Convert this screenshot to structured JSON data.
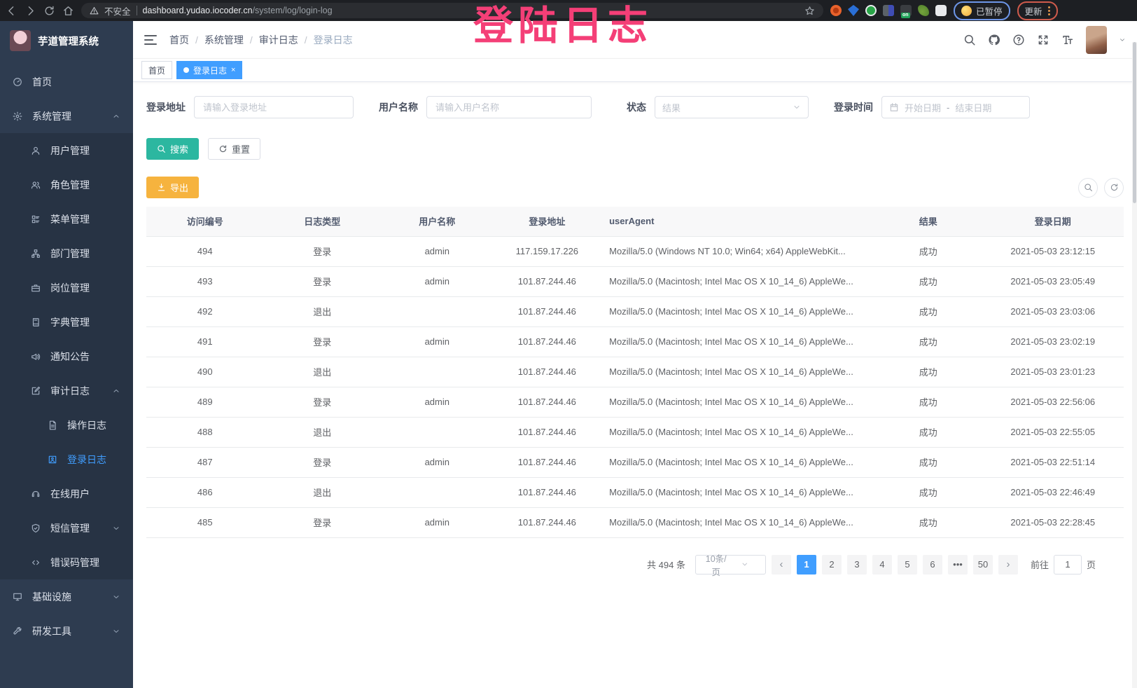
{
  "browser": {
    "security_warning": "不安全",
    "url_host": "dashboard.yudao.iocoder.cn",
    "url_path": "/system/log/login-log",
    "paused_badge": "已暂停",
    "update_button": "更新"
  },
  "annotation": {
    "text": "登陆日志",
    "color": "#f43f77"
  },
  "sidebar": {
    "title": "芋道管理系统",
    "items": [
      {
        "id": "home",
        "label": "首页",
        "icon": "dashboard-icon",
        "level": 1
      },
      {
        "id": "system-management",
        "label": "系统管理",
        "icon": "gear-icon",
        "level": 1,
        "arrow": "up"
      },
      {
        "id": "user-management",
        "label": "用户管理",
        "icon": "user-icon",
        "level": 2
      },
      {
        "id": "role-management",
        "label": "角色管理",
        "icon": "users-icon",
        "level": 2
      },
      {
        "id": "menu-management",
        "label": "菜单管理",
        "icon": "menu-list-icon",
        "level": 2
      },
      {
        "id": "dept-management",
        "label": "部门管理",
        "icon": "org-tree-icon",
        "level": 2
      },
      {
        "id": "post-management",
        "label": "岗位管理",
        "icon": "briefcase-icon",
        "level": 2
      },
      {
        "id": "dict-management",
        "label": "字典管理",
        "icon": "book-icon",
        "level": 2
      },
      {
        "id": "notice",
        "label": "通知公告",
        "icon": "megaphone-icon",
        "level": 2,
        "arrow": ""
      },
      {
        "id": "audit-log",
        "label": "审计日志",
        "icon": "edit-icon",
        "level": 2,
        "arrow": "up"
      },
      {
        "id": "operation-log",
        "label": "操作日志",
        "icon": "doc-icon",
        "level": 3
      },
      {
        "id": "login-log",
        "label": "登录日志",
        "icon": "login-log-icon",
        "level": 3,
        "active": true
      },
      {
        "id": "online-users",
        "label": "在线用户",
        "icon": "headset-icon",
        "level": 2
      },
      {
        "id": "sms-management",
        "label": "短信管理",
        "icon": "shield-check-icon",
        "level": 2,
        "arrow": "down"
      },
      {
        "id": "errcode-management",
        "label": "错误码管理",
        "icon": "code-icon",
        "level": 2
      },
      {
        "id": "infrastructure",
        "label": "基础设施",
        "icon": "monitor-icon",
        "level": 1,
        "arrow": "down"
      },
      {
        "id": "dev-tools",
        "label": "研发工具",
        "icon": "wrench-icon",
        "level": 1,
        "arrow": "down"
      }
    ]
  },
  "breadcrumb": [
    "首页",
    "系统管理",
    "审计日志",
    "登录日志"
  ],
  "tags": [
    {
      "label": "首页",
      "active": false,
      "closable": false
    },
    {
      "label": "登录日志",
      "active": true,
      "closable": true
    }
  ],
  "filters": {
    "ip_label": "登录地址",
    "ip_placeholder": "请输入登录地址",
    "user_label": "用户名称",
    "user_placeholder": "请输入用户名称",
    "status_label": "状态",
    "status_placeholder": "结果",
    "time_label": "登录时间",
    "date_start": "开始日期",
    "date_separator": "-",
    "date_end": "结束日期",
    "search_label": "搜索",
    "reset_label": "重置",
    "export_label": "导出"
  },
  "table": {
    "headers": [
      "访问编号",
      "日志类型",
      "用户名称",
      "登录地址",
      "userAgent",
      "结果",
      "登录日期"
    ],
    "rows": [
      [
        "494",
        "登录",
        "admin",
        "117.159.17.226",
        "Mozilla/5.0 (Windows NT 10.0; Win64; x64) AppleWebKit...",
        "成功",
        "2021-05-03 23:12:15"
      ],
      [
        "493",
        "登录",
        "admin",
        "101.87.244.46",
        "Mozilla/5.0 (Macintosh; Intel Mac OS X 10_14_6) AppleWe...",
        "成功",
        "2021-05-03 23:05:49"
      ],
      [
        "492",
        "退出",
        "",
        "101.87.244.46",
        "Mozilla/5.0 (Macintosh; Intel Mac OS X 10_14_6) AppleWe...",
        "成功",
        "2021-05-03 23:03:06"
      ],
      [
        "491",
        "登录",
        "admin",
        "101.87.244.46",
        "Mozilla/5.0 (Macintosh; Intel Mac OS X 10_14_6) AppleWe...",
        "成功",
        "2021-05-03 23:02:19"
      ],
      [
        "490",
        "退出",
        "",
        "101.87.244.46",
        "Mozilla/5.0 (Macintosh; Intel Mac OS X 10_14_6) AppleWe...",
        "成功",
        "2021-05-03 23:01:23"
      ],
      [
        "489",
        "登录",
        "admin",
        "101.87.244.46",
        "Mozilla/5.0 (Macintosh; Intel Mac OS X 10_14_6) AppleWe...",
        "成功",
        "2021-05-03 22:56:06"
      ],
      [
        "488",
        "退出",
        "",
        "101.87.244.46",
        "Mozilla/5.0 (Macintosh; Intel Mac OS X 10_14_6) AppleWe...",
        "成功",
        "2021-05-03 22:55:05"
      ],
      [
        "487",
        "登录",
        "admin",
        "101.87.244.46",
        "Mozilla/5.0 (Macintosh; Intel Mac OS X 10_14_6) AppleWe...",
        "成功",
        "2021-05-03 22:51:14"
      ],
      [
        "486",
        "退出",
        "",
        "101.87.244.46",
        "Mozilla/5.0 (Macintosh; Intel Mac OS X 10_14_6) AppleWe...",
        "成功",
        "2021-05-03 22:46:49"
      ],
      [
        "485",
        "登录",
        "admin",
        "101.87.244.46",
        "Mozilla/5.0 (Macintosh; Intel Mac OS X 10_14_6) AppleWe...",
        "成功",
        "2021-05-03 22:28:45"
      ]
    ]
  },
  "pagination": {
    "total": "共 494 条",
    "page_size": "10条/页",
    "pages": [
      "1",
      "2",
      "3",
      "4",
      "5",
      "6",
      "•••",
      "50"
    ],
    "active_page": "1",
    "goto_label": "前往",
    "goto_value": "1",
    "goto_suffix": "页"
  },
  "colors": {
    "accent_blue": "#409eff",
    "sidebar_bg": "#2e3c50",
    "submenu_bg": "#273344",
    "teal_button": "#2cb7a0",
    "orange_button": "#f6b33e",
    "annotation_pink": "#f43f77"
  }
}
